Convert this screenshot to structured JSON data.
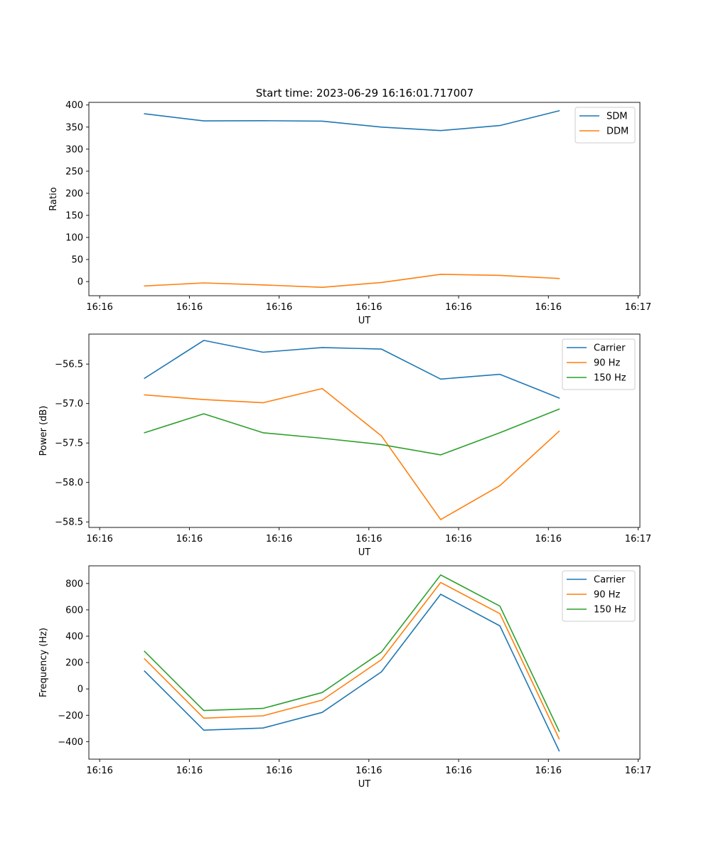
{
  "figure": {
    "suptitle": "Start time: 2023-06-29 16:16:01.717007"
  },
  "chart_data": [
    {
      "type": "line",
      "title": "Start time: 2023-06-29 16:16:01.717007",
      "xlabel": "UT",
      "ylabel": "Ratio",
      "xticks": [
        "16:16",
        "16:16",
        "16:16",
        "16:16",
        "16:16",
        "16:16",
        "16:17"
      ],
      "xlim": [
        -0.12,
        6.02
      ],
      "ylim": [
        -32,
        406
      ],
      "yticks": [
        0,
        50,
        100,
        150,
        200,
        250,
        300,
        350,
        400
      ],
      "legend": "top-right",
      "x": [
        0.5,
        1.16,
        1.82,
        2.48,
        3.14,
        3.8,
        4.46,
        5.12
      ],
      "series": [
        {
          "name": "SDM",
          "color": "#1f77b4",
          "values": [
            380,
            364,
            364.5,
            363.5,
            350,
            342,
            353.5,
            387
          ]
        },
        {
          "name": "DDM",
          "color": "#ff7f0e",
          "values": [
            -10,
            -3,
            -7.5,
            -13,
            -2,
            16.5,
            14,
            7
          ]
        }
      ]
    },
    {
      "type": "line",
      "title": "",
      "xlabel": "UT",
      "ylabel": "Power (dB)",
      "xticks": [
        "16:16",
        "16:16",
        "16:16",
        "16:16",
        "16:16",
        "16:16",
        "16:17"
      ],
      "xlim": [
        -0.12,
        6.02
      ],
      "ylim": [
        -58.57,
        -56.12
      ],
      "yticks": [
        -56.5,
        -57.0,
        -57.5,
        -58.0,
        -58.5
      ],
      "ytick_labels": [
        "−56.5",
        "−57.0",
        "−57.5",
        "−58.0",
        "−58.5"
      ],
      "legend": "top-right",
      "x": [
        0.5,
        1.16,
        1.82,
        2.48,
        3.14,
        3.8,
        4.46,
        5.12
      ],
      "series": [
        {
          "name": "Carrier",
          "color": "#1f77b4",
          "values": [
            -56.68,
            -56.2,
            -56.35,
            -56.29,
            -56.31,
            -56.69,
            -56.63,
            -56.93
          ]
        },
        {
          "name": "90 Hz",
          "color": "#ff7f0e",
          "values": [
            -56.89,
            -56.95,
            -56.99,
            -56.81,
            -57.41,
            -58.47,
            -58.04,
            -57.35
          ]
        },
        {
          "name": "150 Hz",
          "color": "#2ca02c",
          "values": [
            -57.37,
            -57.13,
            -57.37,
            -57.44,
            -57.52,
            -57.65,
            -57.37,
            -57.07
          ]
        }
      ]
    },
    {
      "type": "line",
      "title": "",
      "xlabel": "UT",
      "ylabel": "Frequency (Hz)",
      "xticks": [
        "16:16",
        "16:16",
        "16:16",
        "16:16",
        "16:16",
        "16:16",
        "16:17"
      ],
      "xlim": [
        -0.12,
        6.02
      ],
      "ylim": [
        -533,
        934
      ],
      "yticks": [
        -400,
        -200,
        0,
        200,
        400,
        600,
        800
      ],
      "ytick_labels": [
        "−400",
        "−200",
        "0",
        "200",
        "400",
        "600",
        "800"
      ],
      "legend": "top-right",
      "x": [
        0.5,
        1.16,
        1.82,
        2.48,
        3.14,
        3.8,
        4.46,
        5.12
      ],
      "series": [
        {
          "name": "Carrier",
          "color": "#1f77b4",
          "values": [
            135,
            -313,
            -297,
            -178,
            130,
            718,
            478,
            -470
          ]
        },
        {
          "name": "90 Hz",
          "color": "#ff7f0e",
          "values": [
            228,
            -222,
            -204,
            -85,
            222,
            808,
            571,
            -378
          ]
        },
        {
          "name": "150 Hz",
          "color": "#2ca02c",
          "values": [
            285,
            -164,
            -148,
            -27,
            280,
            865,
            628,
            -321
          ]
        }
      ]
    }
  ]
}
